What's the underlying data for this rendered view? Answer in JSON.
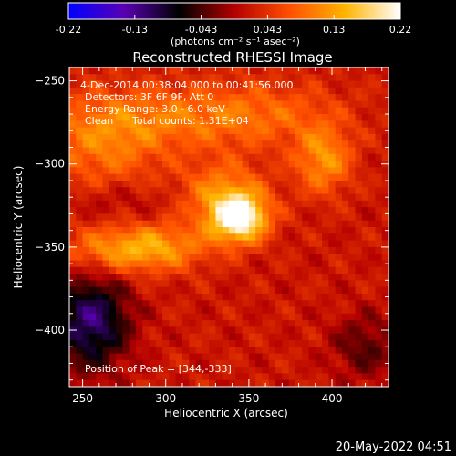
{
  "chart_data": {
    "type": "heatmap",
    "title": "Reconstructed RHESSI Image",
    "xlabel": "Heliocentric X (arcsec)",
    "ylabel": "Heliocentric Y (arcsec)",
    "xlim": [
      242,
      434
    ],
    "ylim": [
      -434,
      -242
    ],
    "x_ticks": [
      250,
      300,
      350,
      400
    ],
    "y_ticks": [
      -250,
      -300,
      -350,
      -400
    ],
    "colorbar": {
      "min": -0.22,
      "max": 0.22,
      "ticks": [
        "-0.22",
        "-0.13",
        "-0.043",
        "0.043",
        "0.13",
        "0.22"
      ],
      "units_label": "(photons cm⁻² s⁻¹ asec⁻²)",
      "colormap": [
        "#0000ff",
        "#5a00b4",
        "#000000",
        "#b40000",
        "#ff5000",
        "#ffb400",
        "#ffffff"
      ]
    },
    "annotations": [
      "4-Dec-2014 00:38:04.000 to 00:41:56.000",
      "Detectors: 3F 6F 9F, Att 0",
      "Energy Range: 3.0 - 6.0 keV",
      "Clean",
      "Total counts: 1.31E+04"
    ],
    "peak_label": "Position of Peak = [344,-333]",
    "peak": {
      "x": 344,
      "y": -333,
      "value": 0.22
    },
    "features": [
      {
        "x": 344,
        "y": -333,
        "sx": 12,
        "sy": 10,
        "amp": 0.2
      },
      {
        "x": 335,
        "y": -318,
        "sx": 18,
        "sy": 14,
        "amp": 0.09
      },
      {
        "x": 395,
        "y": -298,
        "sx": 12,
        "sy": 14,
        "amp": 0.1
      },
      {
        "x": 268,
        "y": -352,
        "sx": 22,
        "sy": 10,
        "amp": 0.09
      },
      {
        "x": 300,
        "y": -350,
        "sx": 20,
        "sy": 10,
        "amp": 0.08
      },
      {
        "x": 262,
        "y": -290,
        "sx": 26,
        "sy": 20,
        "amp": 0.07
      },
      {
        "x": 300,
        "y": -272,
        "sx": 45,
        "sy": 14,
        "amp": 0.06
      },
      {
        "x": 360,
        "y": -270,
        "sx": 35,
        "sy": 14,
        "amp": 0.05
      },
      {
        "x": 255,
        "y": -395,
        "sx": 16,
        "sy": 20,
        "amp": -0.14
      },
      {
        "x": 270,
        "y": -322,
        "sx": 22,
        "sy": 8,
        "amp": -0.03
      },
      {
        "x": 420,
        "y": -410,
        "sx": 14,
        "sy": 14,
        "amp": -0.06
      }
    ]
  },
  "footer": {
    "timestamp": "20-May-2022 04:51"
  }
}
